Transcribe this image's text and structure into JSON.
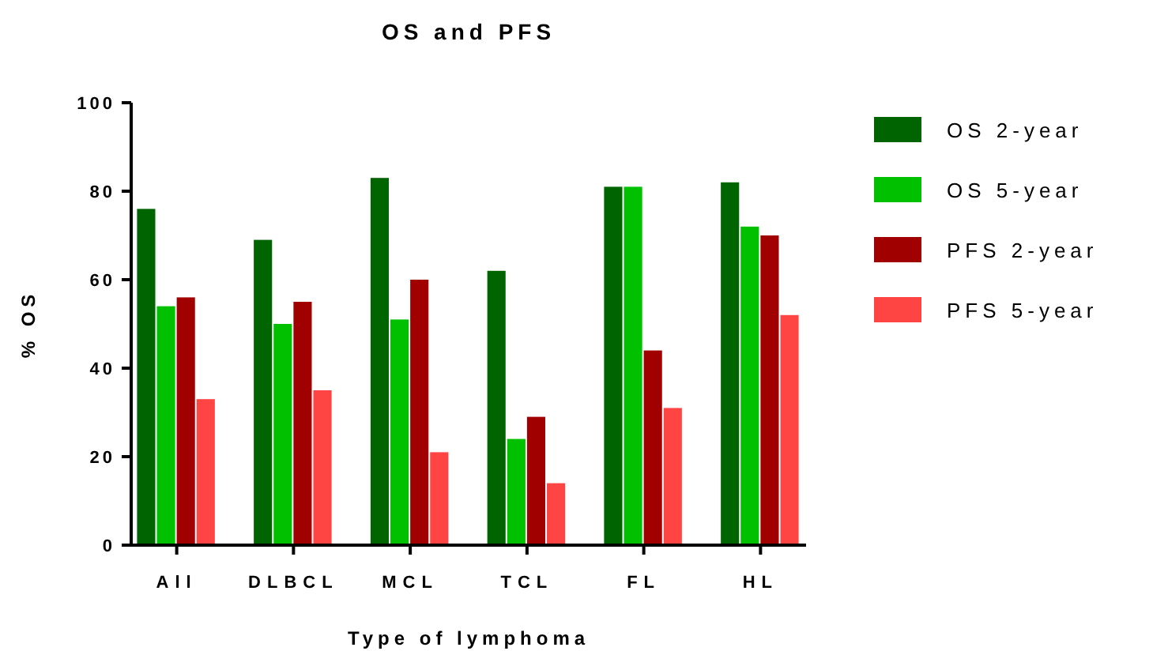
{
  "chart_data": {
    "type": "bar",
    "title": "OS and PFS",
    "xlabel": "Type of lymphoma",
    "ylabel": "% OS",
    "categories": [
      "All",
      "DLBCL",
      "MCL",
      "TCL",
      "FL",
      "HL"
    ],
    "series": [
      {
        "name": "OS 2-year",
        "color": "#006400",
        "values": [
          76,
          69,
          83,
          62,
          81,
          82
        ]
      },
      {
        "name": "OS 5-year",
        "color": "#00c000",
        "values": [
          54,
          50,
          51,
          24,
          81,
          72
        ]
      },
      {
        "name": "PFS 2-year",
        "color": "#a00000",
        "values": [
          56,
          55,
          60,
          29,
          44,
          70
        ]
      },
      {
        "name": "PFS 5-year",
        "color": "#ff4444",
        "values": [
          33,
          35,
          21,
          14,
          31,
          52
        ]
      }
    ],
    "ylim": [
      0,
      100
    ],
    "yticks": [
      0,
      20,
      40,
      60,
      80,
      100
    ],
    "legend": "top right",
    "grid": false
  }
}
